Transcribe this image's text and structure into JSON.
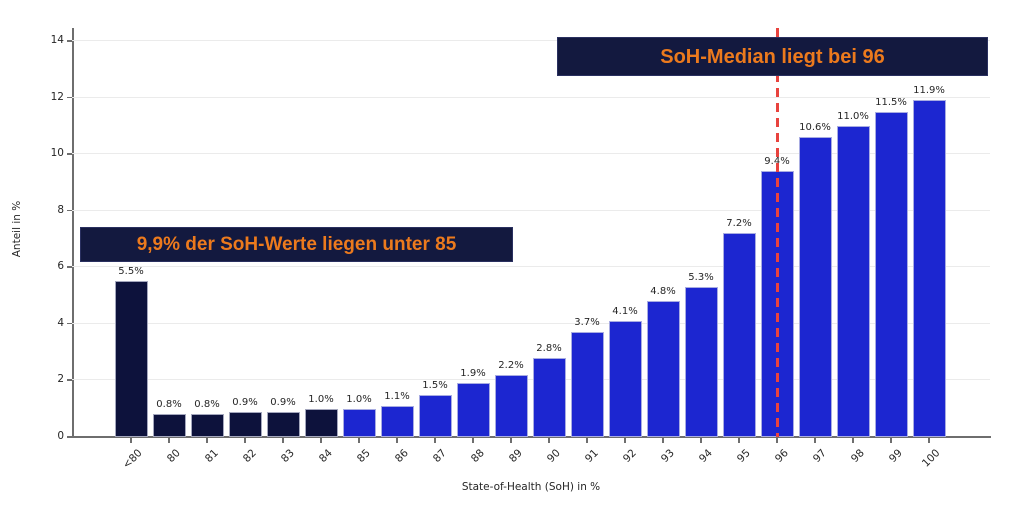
{
  "chart_data": {
    "type": "bar",
    "title": "",
    "xlabel": "State-of-Health (SoH) in %",
    "ylabel": "Anteil in %",
    "ylim": [
      0,
      14
    ],
    "yticks": [
      0,
      2,
      4,
      6,
      8,
      10,
      12,
      14
    ],
    "grid": "horizontal",
    "legend": "none",
    "categories": [
      "<80",
      "80",
      "81",
      "82",
      "83",
      "84",
      "85",
      "86",
      "87",
      "88",
      "89",
      "90",
      "91",
      "92",
      "93",
      "94",
      "95",
      "96",
      "97",
      "98",
      "99",
      "100"
    ],
    "values": [
      5.5,
      0.8,
      0.8,
      0.9,
      0.9,
      1.0,
      1.0,
      1.1,
      1.5,
      1.9,
      2.2,
      2.8,
      3.7,
      4.1,
      4.8,
      5.3,
      7.2,
      9.4,
      10.6,
      11.0,
      11.5,
      11.9
    ],
    "value_labels": [
      "5.5%",
      "0.8%",
      "0.8%",
      "0.9%",
      "0.9%",
      "1.0%",
      "1.0%",
      "1.1%",
      "1.5%",
      "1.9%",
      "2.2%",
      "2.8%",
      "3.7%",
      "4.1%",
      "4.8%",
      "5.3%",
      "7.2%",
      "9.4%",
      "10.6%",
      "11.0%",
      "11.5%",
      "11.9%"
    ],
    "dark_categories": [
      "<80",
      "80",
      "81",
      "82",
      "83",
      "84"
    ],
    "median_line": {
      "category": "96",
      "style": "dashed"
    },
    "annotations": [
      {
        "id": "under85",
        "text": "9,9% der SoH-Werte liegen unter 85"
      },
      {
        "id": "median",
        "text": "SoH-Median liegt bei 96"
      }
    ]
  },
  "colors": {
    "bar_blue": "#1c26d0",
    "bar_dark_navy": "#0d123c",
    "annotation_bg": "#13193f",
    "annotation_text": "#ec7a1d",
    "median_line_red": "#e8433e",
    "grid": "#ebebeb",
    "axis": "#6e6e6e",
    "text": "#262626",
    "background": "#ffffff"
  }
}
